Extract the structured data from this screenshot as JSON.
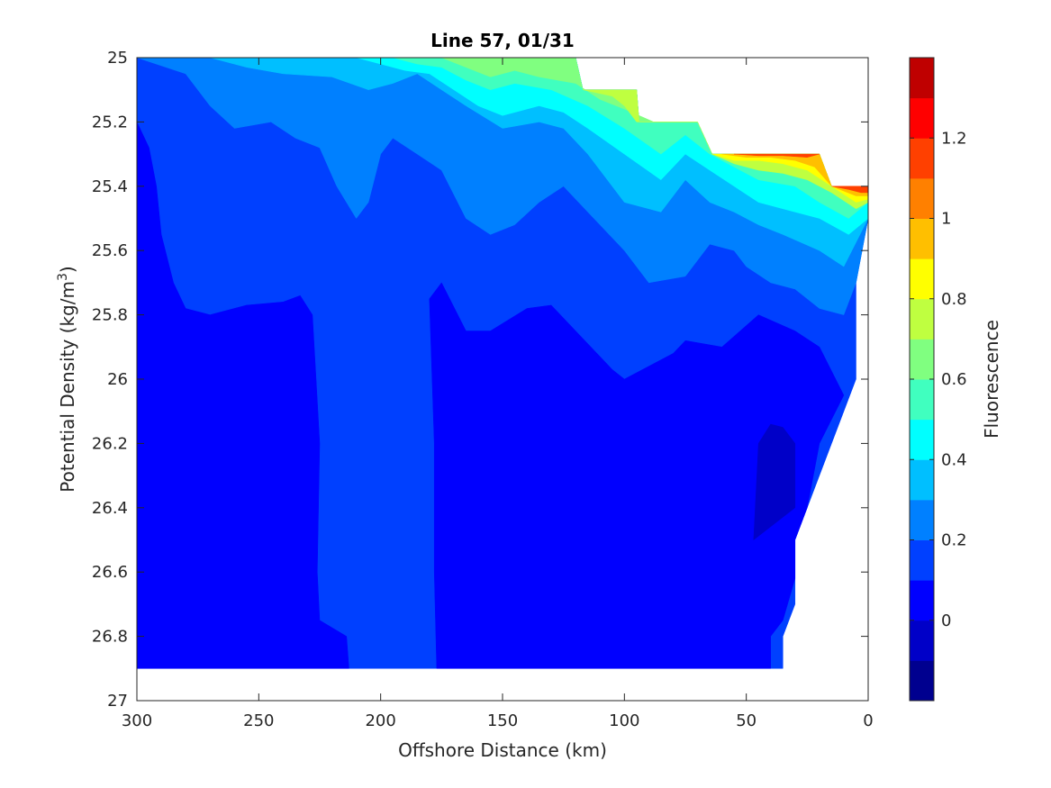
{
  "chart_data": {
    "type": "contourf",
    "title": "Line 57, 01/31",
    "xlabel": "Offshore Distance (km)",
    "ylabel_main": "Potential Density (kg/m",
    "ylabel_sup": "3",
    "ylabel_close": ")",
    "xlim": [
      300,
      0
    ],
    "x_reversed": true,
    "ylim": [
      25,
      27
    ],
    "y_reversed": true,
    "xticks": [
      300,
      250,
      200,
      150,
      100,
      50,
      0
    ],
    "xtick_labels": [
      "300",
      "250",
      "200",
      "150",
      "100",
      "50",
      "0"
    ],
    "yticks": [
      25,
      25.2,
      25.4,
      25.6,
      25.8,
      26,
      26.2,
      26.4,
      26.6,
      26.8,
      27
    ],
    "ytick_labels": [
      "25",
      "25.2",
      "25.4",
      "25.6",
      "25.8",
      "26",
      "26.2",
      "26.4",
      "26.6",
      "26.8",
      "27"
    ],
    "colorbar": {
      "label": "Fluorescence",
      "range": [
        -0.2,
        1.4
      ],
      "levels": [
        -0.2,
        -0.1,
        0,
        0.1,
        0.2,
        0.3,
        0.4,
        0.5,
        0.6,
        0.7,
        0.8,
        0.9,
        1.0,
        1.1,
        1.2,
        1.3,
        1.4
      ],
      "colors": [
        "#00008f",
        "#0000c8",
        "#0000ff",
        "#0040ff",
        "#0080ff",
        "#00bfff",
        "#00ffff",
        "#40ffbf",
        "#80ff80",
        "#bfff40",
        "#ffff00",
        "#ffbf00",
        "#ff8000",
        "#ff4000",
        "#ff0000",
        "#bf0000"
      ],
      "ticks": [
        0,
        0.2,
        0.4,
        0.6,
        0.8,
        1,
        1.2
      ],
      "tick_labels": [
        "0",
        "0.2",
        "0.4",
        "0.6",
        "0.8",
        "1",
        "1.2"
      ]
    },
    "data_domain": [
      [
        300,
        25
      ],
      [
        120,
        25
      ],
      [
        117,
        25.1
      ],
      [
        95,
        25.1
      ],
      [
        94,
        25.2
      ],
      [
        70,
        25.2
      ],
      [
        64,
        25.3
      ],
      [
        20,
        25.3
      ],
      [
        15,
        25.4
      ],
      [
        0,
        25.4
      ],
      [
        0,
        25.5
      ],
      [
        5,
        25.7
      ],
      [
        5,
        26.0
      ],
      [
        15,
        26.2
      ],
      [
        25,
        26.4
      ],
      [
        30,
        26.5
      ],
      [
        30,
        26.7
      ],
      [
        35,
        26.8
      ],
      [
        35,
        26.9
      ],
      [
        300,
        26.9
      ]
    ],
    "regions": [
      {
        "level": 0.1,
        "polygon": [
          [
            300,
            25
          ],
          [
            120,
            25
          ],
          [
            117,
            25.1
          ],
          [
            95,
            25.1
          ],
          [
            94,
            25.2
          ],
          [
            70,
            25.2
          ],
          [
            64,
            25.3
          ],
          [
            20,
            25.3
          ],
          [
            15,
            25.4
          ],
          [
            0,
            25.4
          ],
          [
            0,
            25.5
          ],
          [
            5,
            25.7
          ],
          [
            5,
            26.0
          ],
          [
            15,
            26.2
          ],
          [
            25,
            26.4
          ],
          [
            30,
            26.5
          ],
          [
            30,
            26.7
          ],
          [
            35,
            26.8
          ],
          [
            35,
            26.9
          ],
          [
            300,
            26.9
          ]
        ]
      },
      {
        "level": 0.0,
        "polygon": [
          [
            300,
            25.2
          ],
          [
            295,
            25.28
          ],
          [
            292,
            25.4
          ],
          [
            290,
            25.55
          ],
          [
            285,
            25.7
          ],
          [
            280,
            25.78
          ],
          [
            270,
            25.8
          ],
          [
            255,
            25.77
          ],
          [
            240,
            25.76
          ],
          [
            233,
            25.74
          ],
          [
            228,
            25.8
          ],
          [
            225,
            26.2
          ],
          [
            226,
            26.6
          ],
          [
            225,
            26.75
          ],
          [
            214,
            26.8
          ],
          [
            213,
            26.9
          ],
          [
            300,
            26.9
          ]
        ]
      },
      {
        "level": 0.0,
        "polygon": [
          [
            175,
            25.7
          ],
          [
            180,
            25.75
          ],
          [
            178,
            26.2
          ],
          [
            178,
            26.6
          ],
          [
            177,
            26.9
          ],
          [
            40,
            26.9
          ],
          [
            40,
            26.8
          ],
          [
            35,
            26.75
          ],
          [
            30,
            26.62
          ],
          [
            30,
            26.5
          ],
          [
            25,
            26.4
          ],
          [
            20,
            26.2
          ],
          [
            10,
            26.05
          ],
          [
            20,
            25.9
          ],
          [
            30,
            25.85
          ],
          [
            45,
            25.8
          ],
          [
            60,
            25.9
          ],
          [
            75,
            25.88
          ],
          [
            80,
            25.92
          ],
          [
            100,
            26.0
          ],
          [
            105,
            25.97
          ],
          [
            110,
            25.93
          ],
          [
            120,
            25.85
          ],
          [
            130,
            25.77
          ],
          [
            140,
            25.78
          ],
          [
            155,
            25.85
          ],
          [
            165,
            25.85
          ],
          [
            175,
            25.7
          ]
        ]
      },
      {
        "level": -0.1,
        "polygon": [
          [
            30,
            26.2
          ],
          [
            35,
            26.15
          ],
          [
            40,
            26.14
          ],
          [
            45,
            26.2
          ],
          [
            47,
            26.5
          ],
          [
            30,
            26.4
          ]
        ]
      },
      {
        "level": 0.2,
        "polygon": [
          [
            300,
            25
          ],
          [
            280,
            25.05
          ],
          [
            270,
            25.15
          ],
          [
            260,
            25.22
          ],
          [
            245,
            25.2
          ],
          [
            235,
            25.25
          ],
          [
            225,
            25.28
          ],
          [
            218,
            25.4
          ],
          [
            210,
            25.5
          ],
          [
            205,
            25.45
          ],
          [
            200,
            25.3
          ],
          [
            195,
            25.25
          ],
          [
            185,
            25.3
          ],
          [
            175,
            25.35
          ],
          [
            165,
            25.5
          ],
          [
            155,
            25.55
          ],
          [
            145,
            25.52
          ],
          [
            135,
            25.45
          ],
          [
            125,
            25.4
          ],
          [
            115,
            25.48
          ],
          [
            100,
            25.6
          ],
          [
            90,
            25.7
          ],
          [
            75,
            25.68
          ],
          [
            65,
            25.58
          ],
          [
            55,
            25.6
          ],
          [
            50,
            25.65
          ],
          [
            40,
            25.7
          ],
          [
            30,
            25.72
          ],
          [
            20,
            25.78
          ],
          [
            10,
            25.8
          ],
          [
            5,
            25.7
          ],
          [
            0,
            25.5
          ],
          [
            0,
            25.4
          ],
          [
            15,
            25.4
          ],
          [
            20,
            25.3
          ],
          [
            64,
            25.3
          ],
          [
            70,
            25.2
          ],
          [
            94,
            25.2
          ],
          [
            95,
            25.1
          ],
          [
            117,
            25.1
          ],
          [
            120,
            25
          ]
        ]
      },
      {
        "level": 0.3,
        "polygon": [
          [
            270,
            25
          ],
          [
            255,
            25.03
          ],
          [
            240,
            25.05
          ],
          [
            220,
            25.06
          ],
          [
            205,
            25.1
          ],
          [
            195,
            25.08
          ],
          [
            185,
            25.05
          ],
          [
            175,
            25.1
          ],
          [
            165,
            25.15
          ],
          [
            150,
            25.22
          ],
          [
            135,
            25.2
          ],
          [
            125,
            25.22
          ],
          [
            115,
            25.3
          ],
          [
            100,
            25.45
          ],
          [
            85,
            25.48
          ],
          [
            75,
            25.38
          ],
          [
            65,
            25.45
          ],
          [
            55,
            25.48
          ],
          [
            45,
            25.52
          ],
          [
            35,
            25.55
          ],
          [
            20,
            25.6
          ],
          [
            10,
            25.65
          ],
          [
            0,
            25.5
          ],
          [
            0,
            25.4
          ],
          [
            15,
            25.4
          ],
          [
            20,
            25.3
          ],
          [
            64,
            25.3
          ],
          [
            70,
            25.2
          ],
          [
            94,
            25.2
          ],
          [
            95,
            25.1
          ],
          [
            117,
            25.1
          ],
          [
            120,
            25
          ]
        ]
      },
      {
        "level": 0.4,
        "polygon": [
          [
            210,
            25
          ],
          [
            200,
            25.02
          ],
          [
            190,
            25.04
          ],
          [
            180,
            25.05
          ],
          [
            170,
            25.1
          ],
          [
            160,
            25.15
          ],
          [
            150,
            25.18
          ],
          [
            135,
            25.15
          ],
          [
            125,
            25.17
          ],
          [
            115,
            25.22
          ],
          [
            100,
            25.3
          ],
          [
            85,
            25.38
          ],
          [
            75,
            25.3
          ],
          [
            65,
            25.35
          ],
          [
            55,
            25.4
          ],
          [
            45,
            25.45
          ],
          [
            30,
            25.48
          ],
          [
            20,
            25.5
          ],
          [
            8,
            25.55
          ],
          [
            0,
            25.5
          ],
          [
            0,
            25.4
          ],
          [
            15,
            25.4
          ],
          [
            20,
            25.3
          ],
          [
            64,
            25.3
          ],
          [
            70,
            25.2
          ],
          [
            94,
            25.2
          ],
          [
            95,
            25.1
          ],
          [
            117,
            25.1
          ],
          [
            120,
            25
          ]
        ]
      },
      {
        "level": 0.5,
        "polygon": [
          [
            195,
            25
          ],
          [
            185,
            25.02
          ],
          [
            175,
            25.03
          ],
          [
            165,
            25.07
          ],
          [
            155,
            25.1
          ],
          [
            145,
            25.08
          ],
          [
            130,
            25.1
          ],
          [
            115,
            25.15
          ],
          [
            100,
            25.22
          ],
          [
            85,
            25.3
          ],
          [
            75,
            25.24
          ],
          [
            65,
            25.3
          ],
          [
            55,
            25.34
          ],
          [
            45,
            25.38
          ],
          [
            30,
            25.4
          ],
          [
            20,
            25.45
          ],
          [
            8,
            25.5
          ],
          [
            0,
            25.45
          ],
          [
            0,
            25.4
          ],
          [
            15,
            25.4
          ],
          [
            20,
            25.3
          ],
          [
            64,
            25.3
          ],
          [
            70,
            25.2
          ],
          [
            94,
            25.2
          ],
          [
            95,
            25.1
          ],
          [
            117,
            25.1
          ],
          [
            120,
            25
          ]
        ]
      },
      {
        "level": 0.6,
        "polygon": [
          [
            175,
            25
          ],
          [
            165,
            25.03
          ],
          [
            155,
            25.06
          ],
          [
            145,
            25.04
          ],
          [
            135,
            25.06
          ],
          [
            120,
            25.08
          ],
          [
            110,
            25.13
          ],
          [
            100,
            25.16
          ],
          [
            88,
            25.2
          ],
          [
            70,
            25.2
          ],
          [
            94,
            25.2
          ],
          [
            95,
            25.1
          ],
          [
            117,
            25.1
          ],
          [
            120,
            25
          ]
        ]
      },
      {
        "level": 0.7,
        "polygon": [
          [
            105,
            25.12
          ],
          [
            100,
            25.15
          ],
          [
            95,
            25.2
          ],
          [
            70,
            25.2
          ],
          [
            64,
            25.3
          ],
          [
            55,
            25.33
          ],
          [
            45,
            25.35
          ],
          [
            35,
            25.36
          ],
          [
            25,
            25.38
          ],
          [
            15,
            25.42
          ],
          [
            5,
            25.47
          ],
          [
            0,
            25.45
          ],
          [
            0,
            25.4
          ],
          [
            15,
            25.4
          ],
          [
            20,
            25.3
          ],
          [
            64,
            25.3
          ],
          [
            70,
            25.2
          ],
          [
            94,
            25.2
          ],
          [
            95,
            25.1
          ],
          [
            117,
            25.1
          ]
        ]
      },
      {
        "level": 0.8,
        "polygon": [
          [
            64,
            25.3
          ],
          [
            55,
            25.32
          ],
          [
            45,
            25.32
          ],
          [
            35,
            25.33
          ],
          [
            25,
            25.35
          ],
          [
            15,
            25.4
          ],
          [
            5,
            25.45
          ],
          [
            0,
            25.44
          ],
          [
            0,
            25.4
          ],
          [
            15,
            25.4
          ],
          [
            20,
            25.3
          ]
        ]
      },
      {
        "level": 0.9,
        "polygon": [
          [
            60,
            25.3
          ],
          [
            50,
            25.31
          ],
          [
            40,
            25.31
          ],
          [
            30,
            25.32
          ],
          [
            22,
            25.34
          ],
          [
            15,
            25.4
          ],
          [
            5,
            25.43
          ],
          [
            0,
            25.43
          ],
          [
            0,
            25.4
          ],
          [
            15,
            25.4
          ],
          [
            20,
            25.3
          ]
        ]
      },
      {
        "level": 1.1,
        "polygon": [
          [
            55,
            25.3
          ],
          [
            45,
            25.305
          ],
          [
            35,
            25.305
          ],
          [
            25,
            25.31
          ],
          [
            20,
            25.3
          ]
        ]
      },
      {
        "level": 1.1,
        "polygon": [
          [
            15,
            25.4
          ],
          [
            8,
            25.41
          ],
          [
            3,
            25.42
          ],
          [
            0,
            25.42
          ],
          [
            0,
            25.4
          ]
        ]
      }
    ]
  }
}
